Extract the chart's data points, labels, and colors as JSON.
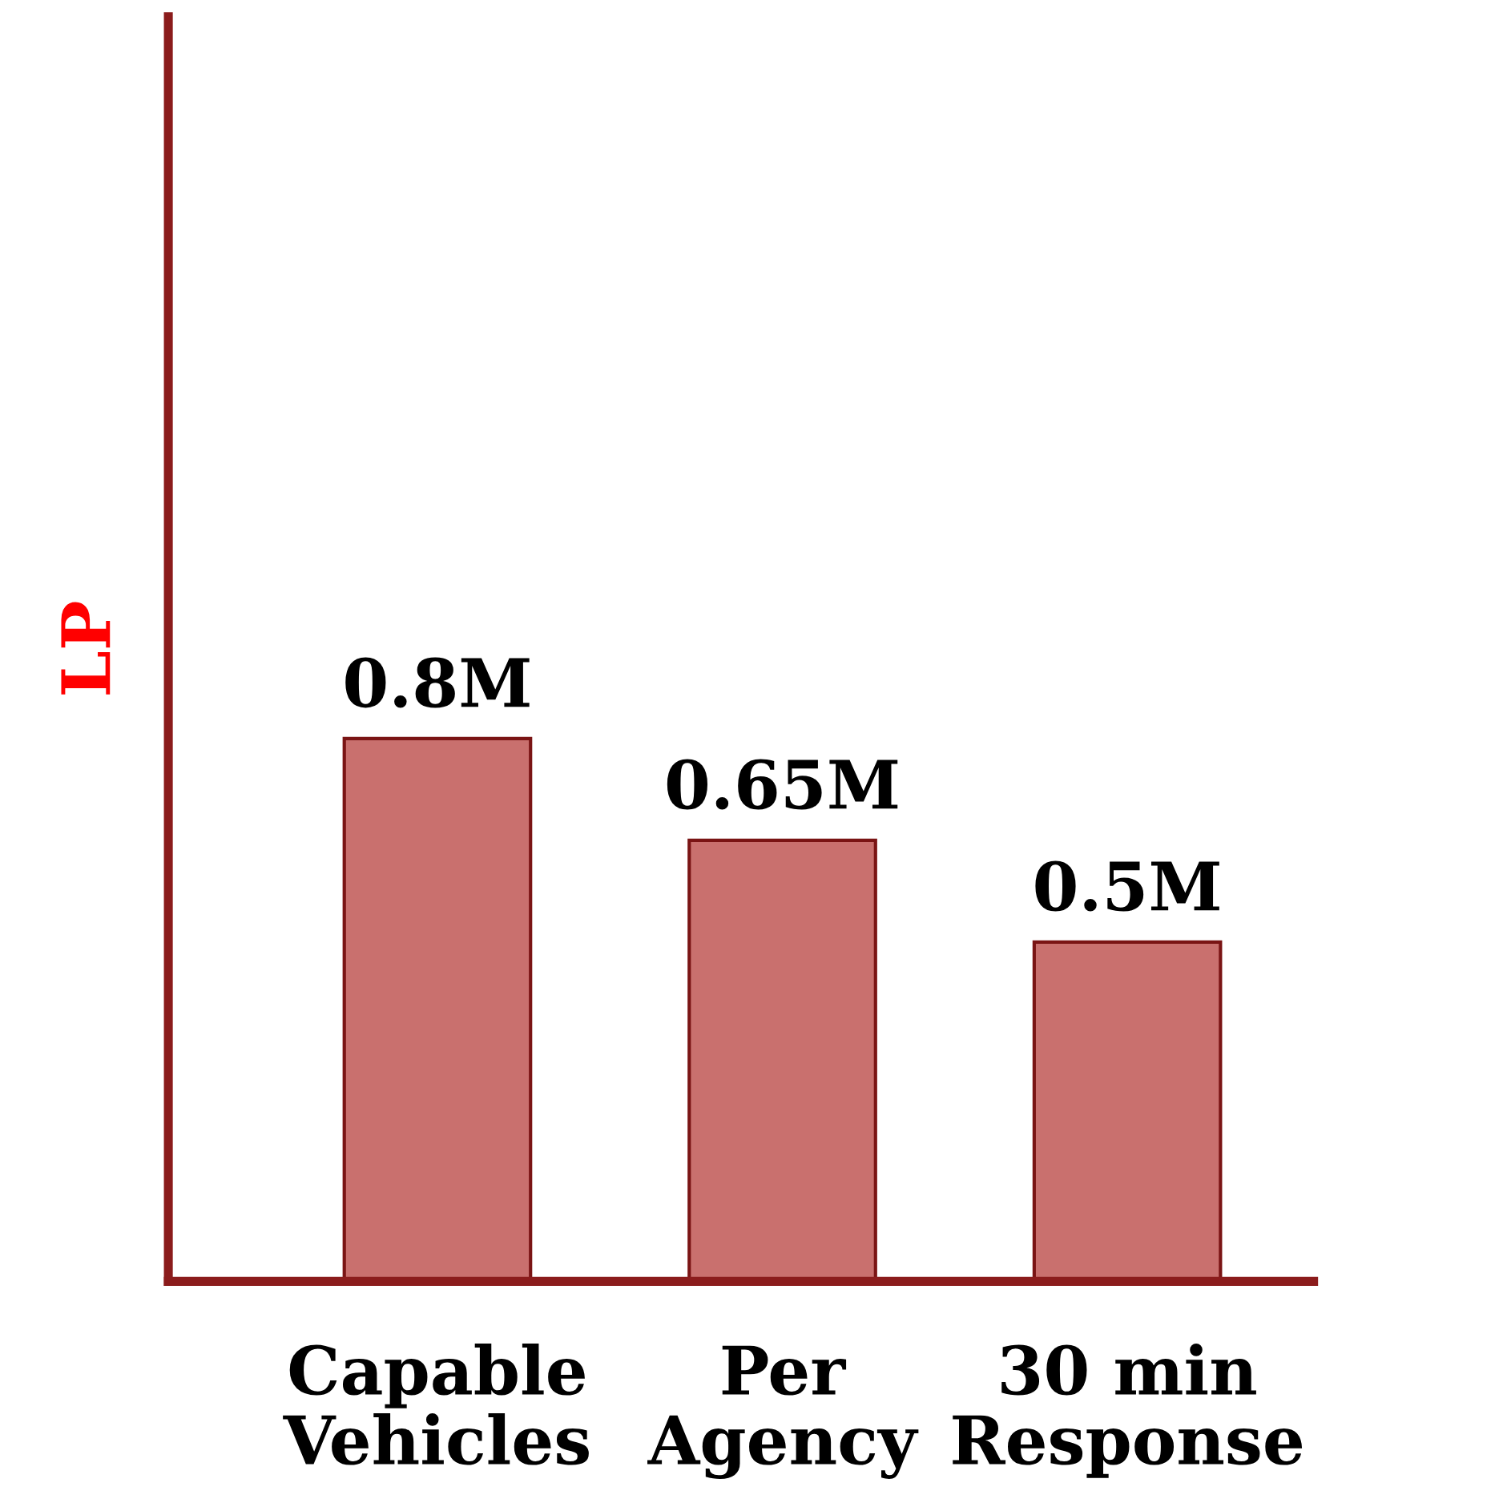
{
  "chart_data": {
    "type": "bar",
    "ylabel": "LP",
    "categories": [
      "Capable\nVehicles",
      "Per\nAgency",
      "30 min\nResponse"
    ],
    "values": [
      0.8,
      0.65,
      0.5
    ],
    "value_labels": [
      "0.8M",
      "0.65M",
      "0.5M"
    ],
    "color": "#c9706e",
    "grid": false,
    "legend": false
  }
}
